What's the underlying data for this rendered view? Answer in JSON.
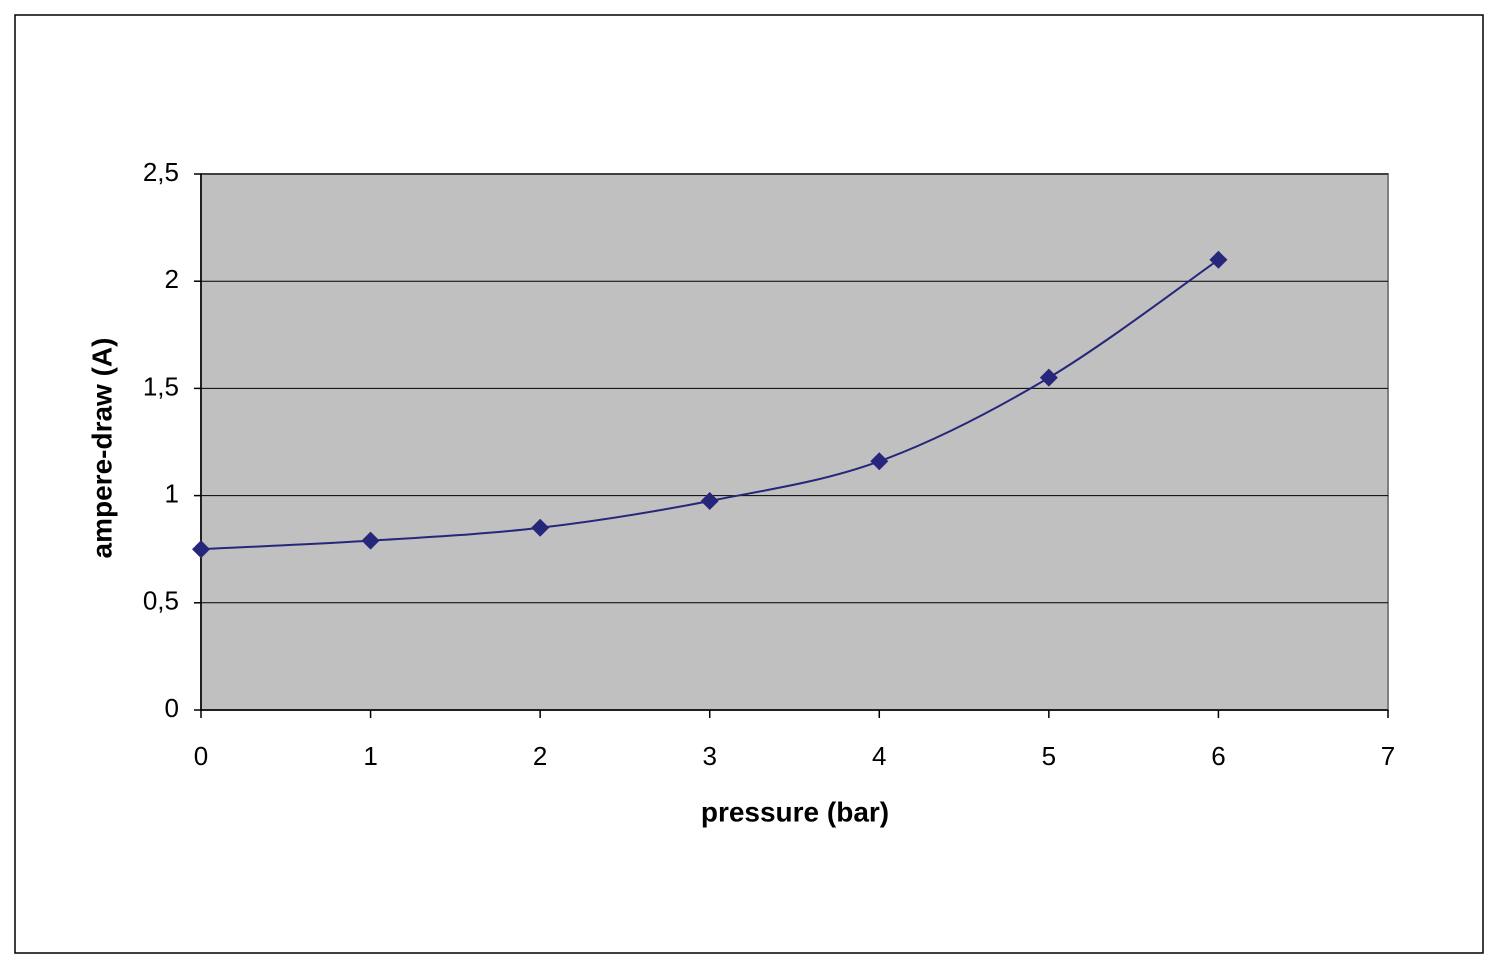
{
  "chart_data": {
    "type": "scatter-line",
    "x_label": "pressure (bar)",
    "y_label": "ampere-draw (A)",
    "x": [
      0,
      1,
      2,
      3,
      4,
      5,
      6
    ],
    "series": [
      {
        "color": "#26267a",
        "values": [
          0.75,
          0.79,
          0.85,
          0.975,
          1.16,
          1.55,
          2.1
        ]
      }
    ],
    "xlim": [
      0,
      7
    ],
    "xticks": [
      0,
      1,
      2,
      3,
      4,
      5,
      6,
      7
    ],
    "ylim": [
      0,
      2.5
    ],
    "yticks": [
      0,
      {
        "value": 0.5,
        "label": "0,5"
      },
      1,
      {
        "value": 1.5,
        "label": "1,5"
      },
      2,
      {
        "value": 2.5,
        "label": "2,5"
      }
    ],
    "grid": true,
    "smooth": true,
    "plot_background": "#c0c0c0"
  }
}
